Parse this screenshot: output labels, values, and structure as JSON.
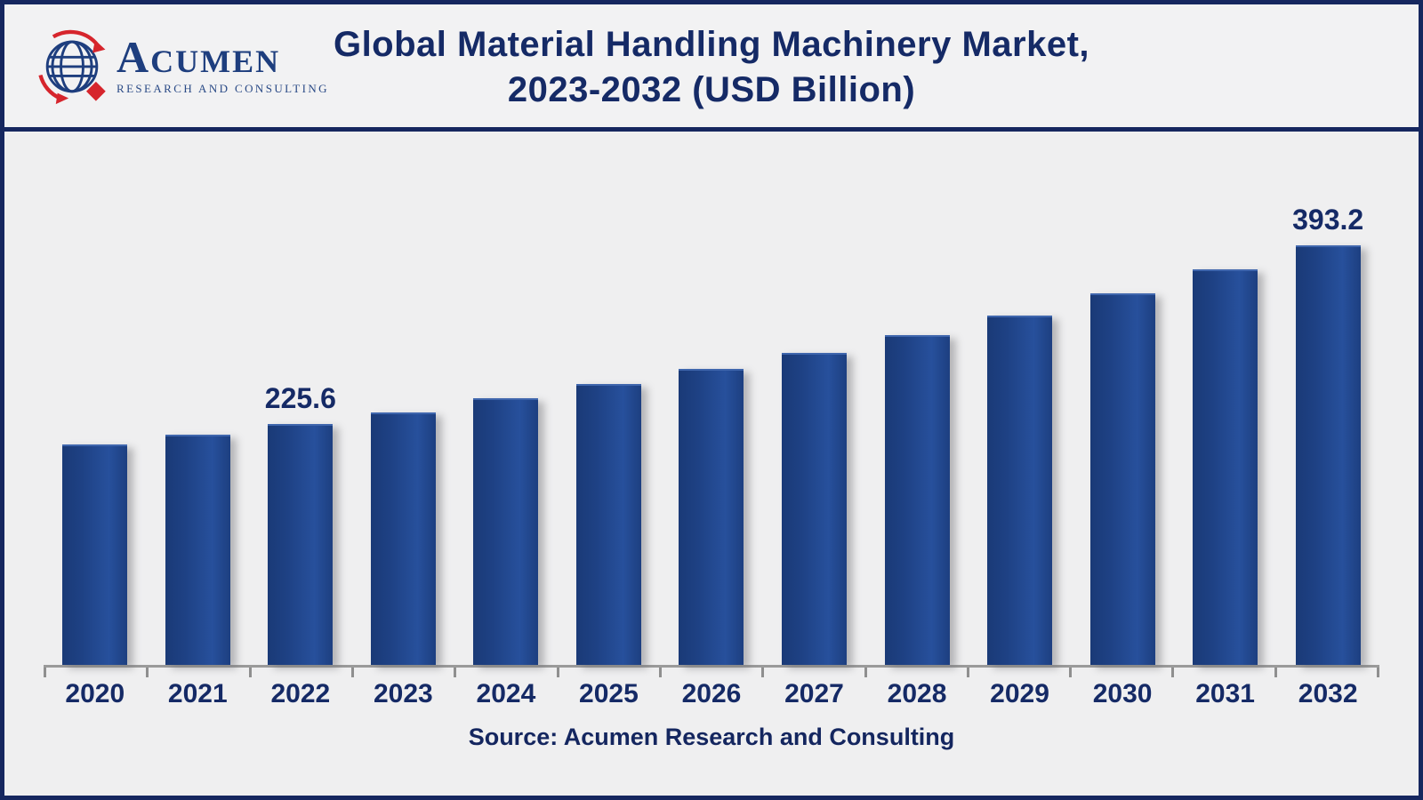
{
  "header": {
    "logo": {
      "name": "ACUMEN",
      "subtitle": "RESEARCH AND CONSULTING"
    },
    "title_line1": "Global Material Handling Machinery Market,",
    "title_line2": "2023-2032 (USD Billion)"
  },
  "chart_data": {
    "type": "bar",
    "title": "Global Material Handling Machinery Market, 2023-2032 (USD Billion)",
    "unit": "USD Billion",
    "categories": [
      "2020",
      "2021",
      "2022",
      "2023",
      "2024",
      "2025",
      "2026",
      "2027",
      "2028",
      "2029",
      "2030",
      "2031",
      "2032"
    ],
    "values": [
      206.3,
      216.2,
      225.6,
      236.6,
      249.8,
      263.4,
      277.6,
      292.3,
      309.0,
      327.8,
      348.1,
      370.5,
      393.2
    ],
    "data_labels": {
      "2022": "225.6",
      "2032": "393.2"
    },
    "ylim": [
      0,
      500
    ],
    "xlabel": "",
    "ylabel": "",
    "grid": "off",
    "legend": "none",
    "bar_color_gradient": [
      "#1a3a77",
      "#27509c"
    ],
    "label_color": "#152a66"
  },
  "footer": {
    "source": "Source: Acumen Research and Consulting"
  },
  "colors": {
    "frame_navy": "#16275f",
    "title_navy": "#152a66",
    "background": "#efeff0",
    "axis_gray": "#9a9a9a",
    "logo_red": "#d6252c",
    "logo_navy": "#1e3e7e"
  }
}
